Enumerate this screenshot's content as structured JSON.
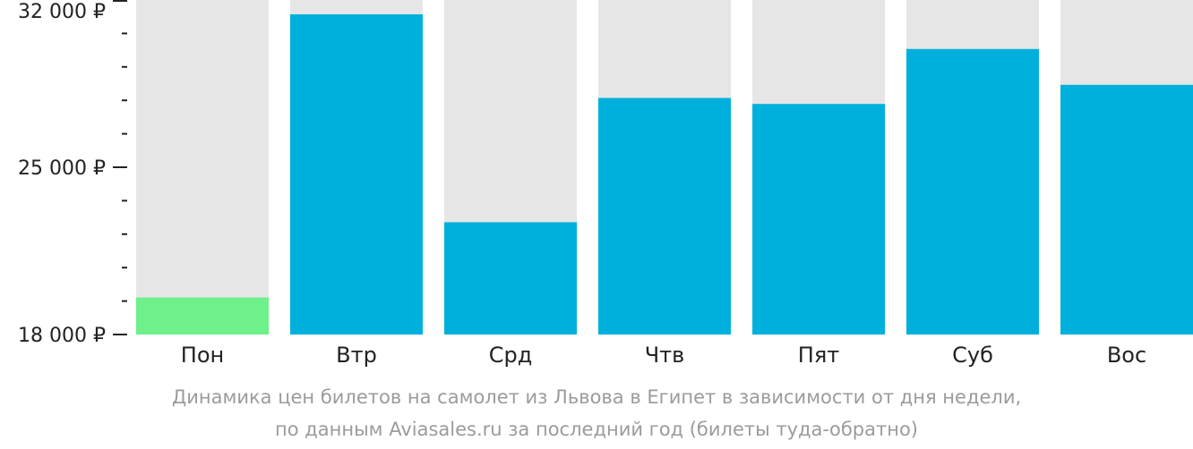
{
  "chart_data": {
    "type": "bar",
    "categories": [
      "Пон",
      "Втр",
      "Срд",
      "Чтв",
      "Пят",
      "Суб",
      "Вос"
    ],
    "values": [
      19550,
      31400,
      22700,
      27900,
      27650,
      29950,
      28450
    ],
    "ylim": [
      18000,
      32000
    ],
    "yticks": [
      {
        "value": 32000,
        "label": "32 000 ₽"
      },
      {
        "value": 25000,
        "label": "25 000 ₽"
      },
      {
        "value": 18000,
        "label": "18 000 ₽"
      }
    ],
    "minor_tick_step": 1400,
    "highlight_index": 0,
    "colors": {
      "bar": "#00b0dc",
      "highlight": "#6ef08a",
      "background_column": "#e6e6e6",
      "axis": "#222222"
    },
    "grid": false,
    "legend": "none"
  },
  "caption": {
    "line1": "Динамика цен билетов на самолет из Львова в Египет в зависимости от дня недели,",
    "line2": "по данным Aviasales.ru за последний год (билеты туда-обратно)"
  }
}
